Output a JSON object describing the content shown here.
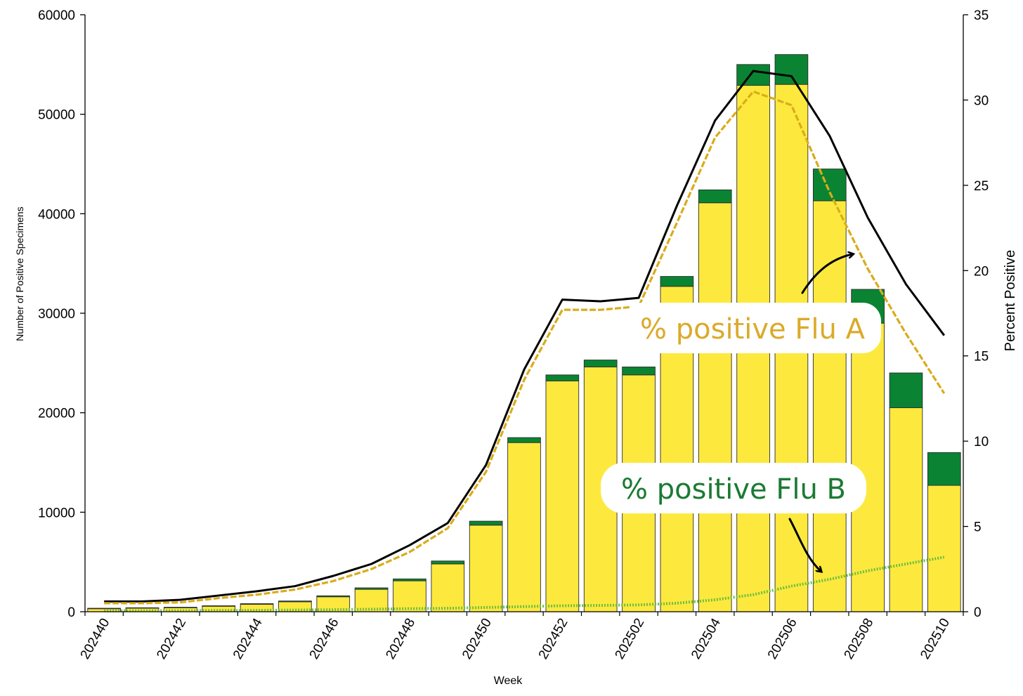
{
  "chart_data": {
    "type": "bar",
    "stacked": true,
    "xlabel": "Week",
    "ylabel_left": "Number of Positive Specimens",
    "ylabel_right": "Percent Positive",
    "ylim_left": [
      0,
      60000
    ],
    "ylim_right": [
      0,
      35
    ],
    "yticks_left": [
      0,
      10000,
      20000,
      30000,
      40000,
      50000,
      60000
    ],
    "yticks_right": [
      0,
      5,
      10,
      15,
      20,
      25,
      30,
      35
    ],
    "grid": false,
    "categories": [
      "202440",
      "202441",
      "202442",
      "202443",
      "202444",
      "202445",
      "202446",
      "202447",
      "202448",
      "202449",
      "202450",
      "202451",
      "202452",
      "202501",
      "202502",
      "202503",
      "202504",
      "202505",
      "202506",
      "202507",
      "202508",
      "202509",
      "202510"
    ],
    "x_tick_labels": [
      "202440",
      "202442",
      "202444",
      "202446",
      "202448",
      "202450",
      "202452",
      "202502",
      "202504",
      "202506",
      "202508",
      "202510"
    ],
    "colors": {
      "flu_a_bar": "#fde93d",
      "flu_b_bar": "#0a8432",
      "total_line": "#000000",
      "flu_a_line": "#d9ac1a",
      "flu_b_line": "#6fbf3e",
      "flu_a_label": "#dbaa2a",
      "flu_b_label": "#1c7a33"
    },
    "bar_series": [
      {
        "key": "flu_a",
        "values": [
          300,
          350,
          400,
          550,
          750,
          1000,
          1500,
          2250,
          3100,
          4800,
          8700,
          17000,
          23200,
          24600,
          23800,
          32700,
          41100,
          52900,
          53000,
          41300,
          29000,
          20500,
          12700
        ]
      },
      {
        "key": "flu_b",
        "values": [
          50,
          50,
          50,
          50,
          60,
          80,
          100,
          150,
          200,
          300,
          400,
          500,
          600,
          700,
          800,
          1000,
          1300,
          2100,
          3000,
          3200,
          3400,
          3500,
          3300
        ]
      }
    ],
    "line_series": [
      {
        "key": "total",
        "axis": "right",
        "values": [
          0.6,
          0.6,
          0.7,
          0.95,
          1.2,
          1.5,
          2.1,
          2.8,
          3.9,
          5.2,
          8.6,
          14.2,
          18.3,
          18.2,
          18.4,
          23.8,
          28.8,
          31.7,
          31.4,
          27.9,
          23.1,
          19.2,
          16.2
        ]
      },
      {
        "key": "flu_a",
        "axis": "right",
        "values": [
          0.5,
          0.5,
          0.55,
          0.8,
          1.0,
          1.3,
          1.8,
          2.5,
          3.5,
          4.9,
          8.2,
          13.6,
          17.7,
          17.7,
          17.9,
          22.8,
          27.8,
          30.5,
          29.7,
          24.6,
          20.1,
          16.3,
          12.8
        ]
      },
      {
        "key": "flu_b",
        "axis": "right",
        "values": [
          0.05,
          0.06,
          0.06,
          0.07,
          0.08,
          0.1,
          0.12,
          0.15,
          0.18,
          0.2,
          0.25,
          0.3,
          0.35,
          0.37,
          0.4,
          0.5,
          0.7,
          1.0,
          1.5,
          1.9,
          2.4,
          2.8,
          3.2
        ]
      }
    ],
    "annotations": [
      {
        "key": "flu_a_callout",
        "text": "% positive Flu A"
      },
      {
        "key": "flu_b_callout",
        "text": "% positive Flu B"
      }
    ]
  }
}
